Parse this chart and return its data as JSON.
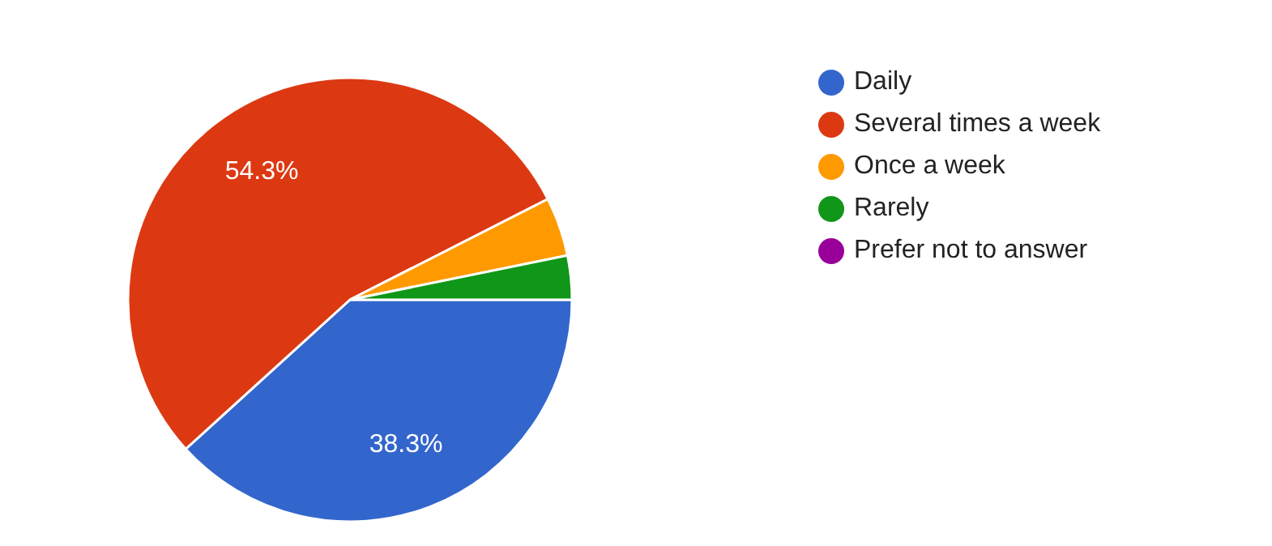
{
  "chart_data": {
    "type": "pie",
    "categories": [
      "Daily",
      "Several times a week",
      "Once a week",
      "Rarely",
      "Prefer not to answer"
    ],
    "values": [
      38.3,
      54.3,
      4.3,
      3.2,
      0
    ],
    "colors": [
      "#3366cc",
      "#dc3912",
      "#ff9900",
      "#109618",
      "#990099"
    ],
    "value_labels": [
      "38.3%",
      "54.3%",
      null,
      null,
      null
    ],
    "legend": "top right"
  }
}
